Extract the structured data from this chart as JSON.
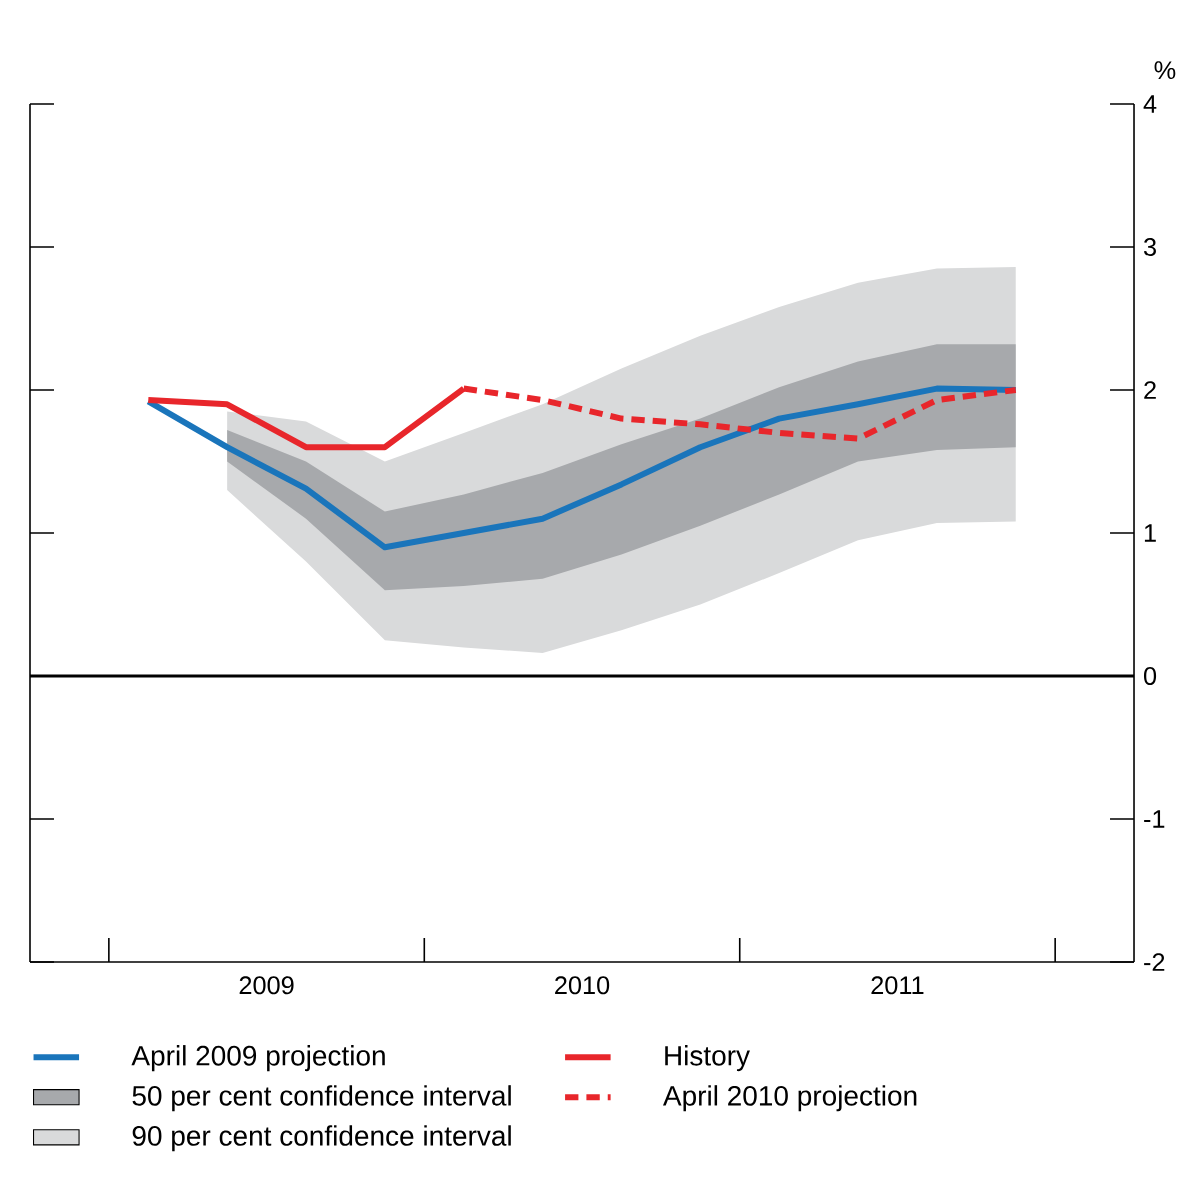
{
  "chart_data": {
    "type": "line",
    "ylabel": "%",
    "xlim": [
      2008.75,
      2012.25
    ],
    "xticks": [
      {
        "value": 2009,
        "label": null
      },
      {
        "value": 2009.5,
        "label": "2009"
      },
      {
        "value": 2010,
        "label": null
      },
      {
        "value": 2010.5,
        "label": "2010"
      },
      {
        "value": 2011,
        "label": null
      },
      {
        "value": 2011.5,
        "label": "2011"
      },
      {
        "value": 2012,
        "label": null
      }
    ],
    "ylim": [
      -2,
      4
    ],
    "yticks": [
      -2,
      -1,
      0,
      1,
      2,
      3,
      4
    ],
    "legend": "bottom",
    "ref_lines": [
      {
        "axis": "y",
        "value": 0,
        "color": "#000000"
      }
    ],
    "series": [
      {
        "name": "April 2009 projection",
        "color": "#1a75bb",
        "x": [
          2009.125,
          2009.375,
          2009.625,
          2009.875,
          2010.125,
          2010.375,
          2010.625,
          2010.875,
          2011.125,
          2011.375,
          2011.625,
          2011.875
        ],
        "values": [
          1.92,
          1.6,
          1.31,
          0.9,
          1.0,
          1.1,
          1.34,
          1.6,
          1.8,
          1.9,
          2.01,
          2.0
        ]
      },
      {
        "name": "History",
        "color": "#e8262b",
        "x": [
          2009.125,
          2009.375,
          2009.625,
          2009.875,
          2010.125
        ],
        "values": [
          1.93,
          1.9,
          1.6,
          1.6,
          2.01
        ]
      },
      {
        "name": "50 per cent confidence interval",
        "type": "area",
        "color": "#a7a9ac",
        "x": [
          2009.375,
          2009.625,
          2009.875,
          2010.125,
          2010.375,
          2010.625,
          2010.875,
          2011.125,
          2011.375,
          2011.625,
          2011.875
        ],
        "values": [
          null,
          null,
          null,
          null,
          null,
          null,
          null,
          null,
          null,
          null,
          null
        ],
        "lower": [
          1.5,
          1.1,
          0.6,
          0.63,
          0.68,
          0.85,
          1.05,
          1.27,
          1.5,
          1.58,
          1.6
        ],
        "upper": [
          1.72,
          1.5,
          1.15,
          1.27,
          1.42,
          1.62,
          1.8,
          2.02,
          2.2,
          2.32,
          2.32
        ]
      },
      {
        "name": "April 2010 projection",
        "line_style": "dashed",
        "color": "#e8262b",
        "x": [
          2010.125,
          2010.375,
          2010.625,
          2010.875,
          2011.125,
          2011.375,
          2011.625,
          2011.875
        ],
        "values": [
          2.01,
          1.93,
          1.8,
          1.76,
          1.7,
          1.66,
          1.93,
          2.0
        ]
      },
      {
        "name": "90 per cent confidence interval",
        "type": "area",
        "color": "#d9dadb",
        "x": [
          2009.375,
          2009.625,
          2009.875,
          2010.125,
          2010.375,
          2010.625,
          2010.875,
          2011.125,
          2011.375,
          2011.625,
          2011.875
        ],
        "values": [
          null,
          null,
          null,
          null,
          null,
          null,
          null,
          null,
          null,
          null,
          null
        ],
        "lower": [
          1.3,
          0.8,
          0.25,
          0.2,
          0.16,
          0.32,
          0.5,
          0.72,
          0.95,
          1.07,
          1.08
        ],
        "upper": [
          1.85,
          1.78,
          1.5,
          1.7,
          1.9,
          2.15,
          2.38,
          2.58,
          2.75,
          2.85,
          2.86
        ]
      }
    ]
  }
}
